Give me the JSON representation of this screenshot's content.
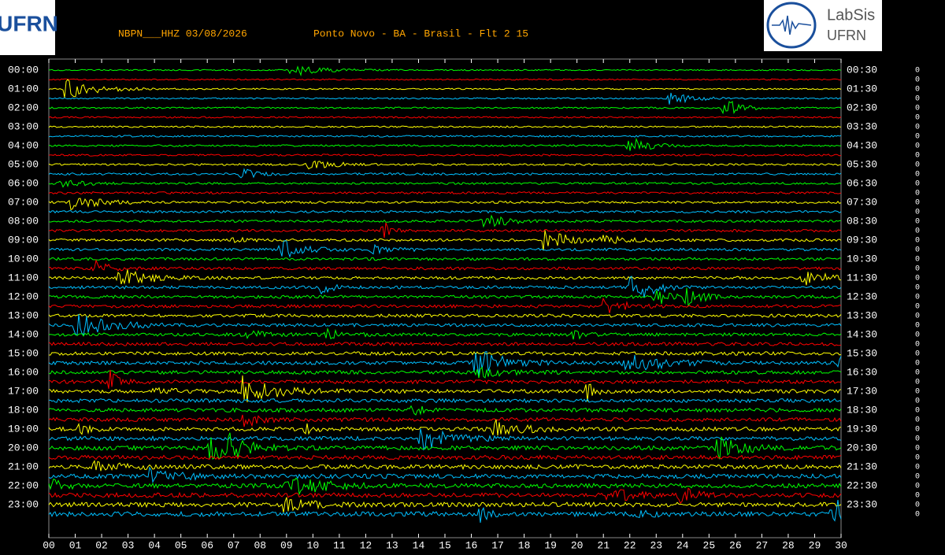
{
  "header": {
    "station": "NBPN___HHZ 03/08/2026",
    "location": "Ponto Novo - BA - Brasil - Flt 2 15",
    "logo_left": "UFRN",
    "logo_right_title": "LabSis",
    "logo_right_sub": "UFRN"
  },
  "left_labels": [
    "00:00",
    "01:00",
    "02:00",
    "03:00",
    "04:00",
    "05:00",
    "06:00",
    "07:00",
    "08:00",
    "09:00",
    "10:00",
    "11:00",
    "12:00",
    "13:00",
    "14:00",
    "15:00",
    "16:00",
    "17:00",
    "18:00",
    "19:00",
    "20:00",
    "21:00",
    "22:00",
    "23:00"
  ],
  "right_labels": [
    "00:30",
    "01:30",
    "02:30",
    "03:30",
    "04:30",
    "05:30",
    "06:30",
    "07:30",
    "08:30",
    "09:30",
    "10:30",
    "11:30",
    "12:30",
    "13:30",
    "14:30",
    "15:30",
    "16:30",
    "17:30",
    "18:30",
    "19:30",
    "20:30",
    "21:30",
    "22:30",
    "23:30"
  ],
  "x_ticks": [
    "00",
    "01",
    "02",
    "03",
    "04",
    "05",
    "06",
    "07",
    "08",
    "09",
    "10",
    "11",
    "12",
    "13",
    "14",
    "15",
    "16",
    "17",
    "18",
    "19",
    "20",
    "21",
    "22",
    "23",
    "24",
    "25",
    "26",
    "27",
    "28",
    "29",
    "30"
  ],
  "right_column": [
    "0",
    "0",
    "0",
    "0",
    "0",
    "0",
    "0",
    "0",
    "0",
    "0",
    "0",
    "0",
    "0",
    "0",
    "0",
    "0",
    "0",
    "0",
    "0",
    "0",
    "0",
    "0",
    "0",
    "0",
    "0",
    "0",
    "0",
    "0",
    "0",
    "0",
    "0",
    "0",
    "0",
    "0",
    "0",
    "0",
    "0",
    "0",
    "0",
    "0",
    "0",
    "0",
    "0",
    "0",
    "0",
    "0",
    "0",
    "0"
  ]
}
